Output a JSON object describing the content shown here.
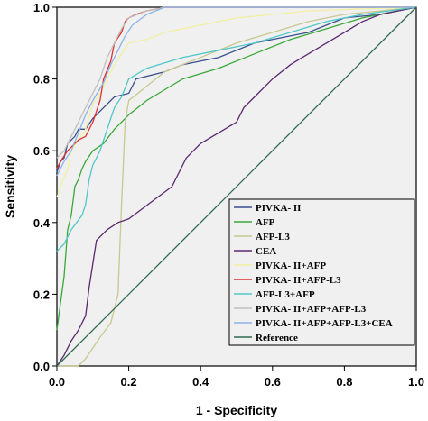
{
  "chart_data": {
    "type": "line",
    "title": "",
    "xlabel": "1 - Specificity",
    "ylabel": "Sensitivity",
    "xlim": [
      0,
      1
    ],
    "ylim": [
      0,
      1
    ],
    "x_ticks": [
      "0.0",
      "0.2",
      "0.4",
      "0.6",
      "0.8",
      "1.0"
    ],
    "y_ticks": [
      "0.0",
      "0.2",
      "0.4",
      "0.6",
      "0.8",
      "1.0"
    ],
    "plot_background": "#f0f0f0",
    "grid": false,
    "legend_position": "bottom-right",
    "series": [
      {
        "name": "PIVKA- II",
        "color": "#3a4f8f",
        "points": [
          [
            0,
            0.54
          ],
          [
            0.01,
            0.57
          ],
          [
            0.02,
            0.58
          ],
          [
            0.03,
            0.62
          ],
          [
            0.05,
            0.64
          ],
          [
            0.06,
            0.66
          ],
          [
            0.08,
            0.66
          ],
          [
            0.1,
            0.69
          ],
          [
            0.13,
            0.72
          ],
          [
            0.16,
            0.75
          ],
          [
            0.2,
            0.76
          ],
          [
            0.22,
            0.8
          ],
          [
            0.3,
            0.82
          ],
          [
            0.35,
            0.84
          ],
          [
            0.45,
            0.86
          ],
          [
            0.55,
            0.9
          ],
          [
            0.6,
            0.91
          ],
          [
            0.7,
            0.93
          ],
          [
            0.8,
            0.97
          ],
          [
            0.9,
            0.98
          ],
          [
            1,
            1
          ]
        ]
      },
      {
        "name": "AFP",
        "color": "#3aa83a",
        "points": [
          [
            0,
            0.1
          ],
          [
            0.02,
            0.25
          ],
          [
            0.03,
            0.38
          ],
          [
            0.04,
            0.42
          ],
          [
            0.05,
            0.5
          ],
          [
            0.06,
            0.52
          ],
          [
            0.07,
            0.55
          ],
          [
            0.08,
            0.57
          ],
          [
            0.1,
            0.6
          ],
          [
            0.13,
            0.62
          ],
          [
            0.16,
            0.66
          ],
          [
            0.2,
            0.7
          ],
          [
            0.25,
            0.74
          ],
          [
            0.3,
            0.77
          ],
          [
            0.35,
            0.8
          ],
          [
            0.45,
            0.83
          ],
          [
            0.55,
            0.87
          ],
          [
            0.65,
            0.91
          ],
          [
            0.75,
            0.94
          ],
          [
            0.85,
            0.97
          ],
          [
            1,
            1
          ]
        ]
      },
      {
        "name": "AFP-L3",
        "color": "#c8c890",
        "points": [
          [
            0,
            0
          ],
          [
            0.06,
            0
          ],
          [
            0.08,
            0.02
          ],
          [
            0.1,
            0.05
          ],
          [
            0.12,
            0.08
          ],
          [
            0.15,
            0.12
          ],
          [
            0.17,
            0.2
          ],
          [
            0.18,
            0.45
          ],
          [
            0.19,
            0.68
          ],
          [
            0.2,
            0.74
          ],
          [
            0.25,
            0.78
          ],
          [
            0.3,
            0.82
          ],
          [
            0.4,
            0.86
          ],
          [
            0.5,
            0.9
          ],
          [
            0.6,
            0.93
          ],
          [
            0.7,
            0.96
          ],
          [
            0.8,
            0.98
          ],
          [
            1,
            1
          ]
        ]
      },
      {
        "name": "CEA",
        "color": "#5a2870",
        "points": [
          [
            0,
            0
          ],
          [
            0.02,
            0.03
          ],
          [
            0.04,
            0.07
          ],
          [
            0.06,
            0.1
          ],
          [
            0.08,
            0.14
          ],
          [
            0.09,
            0.22
          ],
          [
            0.11,
            0.35
          ],
          [
            0.14,
            0.38
          ],
          [
            0.17,
            0.4
          ],
          [
            0.2,
            0.41
          ],
          [
            0.24,
            0.44
          ],
          [
            0.28,
            0.47
          ],
          [
            0.32,
            0.5
          ],
          [
            0.36,
            0.58
          ],
          [
            0.4,
            0.62
          ],
          [
            0.45,
            0.65
          ],
          [
            0.5,
            0.68
          ],
          [
            0.52,
            0.72
          ],
          [
            0.55,
            0.75
          ],
          [
            0.6,
            0.8
          ],
          [
            0.65,
            0.84
          ],
          [
            0.7,
            0.87
          ],
          [
            0.75,
            0.9
          ],
          [
            0.8,
            0.93
          ],
          [
            0.85,
            0.96
          ],
          [
            0.9,
            0.98
          ],
          [
            1,
            1
          ]
        ]
      },
      {
        "name": "PIVKA- II+AFP",
        "color": "#f2f0a0",
        "points": [
          [
            0,
            0.47
          ],
          [
            0.01,
            0.5
          ],
          [
            0.03,
            0.55
          ],
          [
            0.04,
            0.6
          ],
          [
            0.06,
            0.63
          ],
          [
            0.08,
            0.66
          ],
          [
            0.1,
            0.73
          ],
          [
            0.12,
            0.76
          ],
          [
            0.14,
            0.8
          ],
          [
            0.16,
            0.84
          ],
          [
            0.18,
            0.87
          ],
          [
            0.2,
            0.9
          ],
          [
            0.25,
            0.91
          ],
          [
            0.3,
            0.93
          ],
          [
            0.4,
            0.95
          ],
          [
            0.5,
            0.97
          ],
          [
            0.6,
            0.98
          ],
          [
            0.7,
            0.99
          ],
          [
            1,
            1
          ]
        ]
      },
      {
        "name": "PIVKA- II+AFP-L3",
        "color": "#e03030",
        "points": [
          [
            0,
            0.55
          ],
          [
            0.01,
            0.57
          ],
          [
            0.03,
            0.6
          ],
          [
            0.06,
            0.63
          ],
          [
            0.08,
            0.64
          ],
          [
            0.1,
            0.68
          ],
          [
            0.12,
            0.74
          ],
          [
            0.13,
            0.8
          ],
          [
            0.15,
            0.85
          ],
          [
            0.16,
            0.9
          ],
          [
            0.18,
            0.93
          ],
          [
            0.19,
            0.96
          ],
          [
            0.2,
            0.97
          ],
          [
            0.22,
            0.98
          ],
          [
            0.25,
            0.99
          ],
          [
            0.3,
            1
          ],
          [
            1,
            1
          ]
        ]
      },
      {
        "name": "AFP-L3+AFP",
        "color": "#50c8c8",
        "points": [
          [
            0,
            0.32
          ],
          [
            0.02,
            0.34
          ],
          [
            0.04,
            0.38
          ],
          [
            0.07,
            0.42
          ],
          [
            0.08,
            0.45
          ],
          [
            0.09,
            0.52
          ],
          [
            0.1,
            0.56
          ],
          [
            0.12,
            0.6
          ],
          [
            0.14,
            0.66
          ],
          [
            0.16,
            0.72
          ],
          [
            0.18,
            0.75
          ],
          [
            0.2,
            0.8
          ],
          [
            0.25,
            0.83
          ],
          [
            0.35,
            0.86
          ],
          [
            0.45,
            0.88
          ],
          [
            0.55,
            0.9
          ],
          [
            0.65,
            0.93
          ],
          [
            0.75,
            0.96
          ],
          [
            0.85,
            0.98
          ],
          [
            1,
            1
          ]
        ]
      },
      {
        "name": "PIVKA- II+AFP+AFP-L3",
        "color": "#c0c0c0",
        "points": [
          [
            0,
            0.58
          ],
          [
            0.02,
            0.6
          ],
          [
            0.04,
            0.64
          ],
          [
            0.06,
            0.68
          ],
          [
            0.08,
            0.72
          ],
          [
            0.1,
            0.76
          ],
          [
            0.12,
            0.8
          ],
          [
            0.14,
            0.86
          ],
          [
            0.16,
            0.9
          ],
          [
            0.18,
            0.94
          ],
          [
            0.2,
            0.97
          ],
          [
            0.25,
            0.99
          ],
          [
            0.3,
            1
          ],
          [
            1,
            1
          ]
        ]
      },
      {
        "name": "PIVKA- II+AFP+AFP-L3+CEA",
        "color": "#8cb4e8",
        "points": [
          [
            0,
            0.53
          ],
          [
            0.02,
            0.57
          ],
          [
            0.04,
            0.6
          ],
          [
            0.06,
            0.65
          ],
          [
            0.08,
            0.7
          ],
          [
            0.1,
            0.74
          ],
          [
            0.13,
            0.79
          ],
          [
            0.15,
            0.84
          ],
          [
            0.17,
            0.88
          ],
          [
            0.19,
            0.92
          ],
          [
            0.21,
            0.95
          ],
          [
            0.25,
            0.98
          ],
          [
            0.3,
            1
          ],
          [
            1,
            1
          ]
        ]
      },
      {
        "name": "Reference",
        "color": "#2e6b4f",
        "points": [
          [
            0,
            0
          ],
          [
            1,
            1
          ]
        ]
      }
    ]
  }
}
